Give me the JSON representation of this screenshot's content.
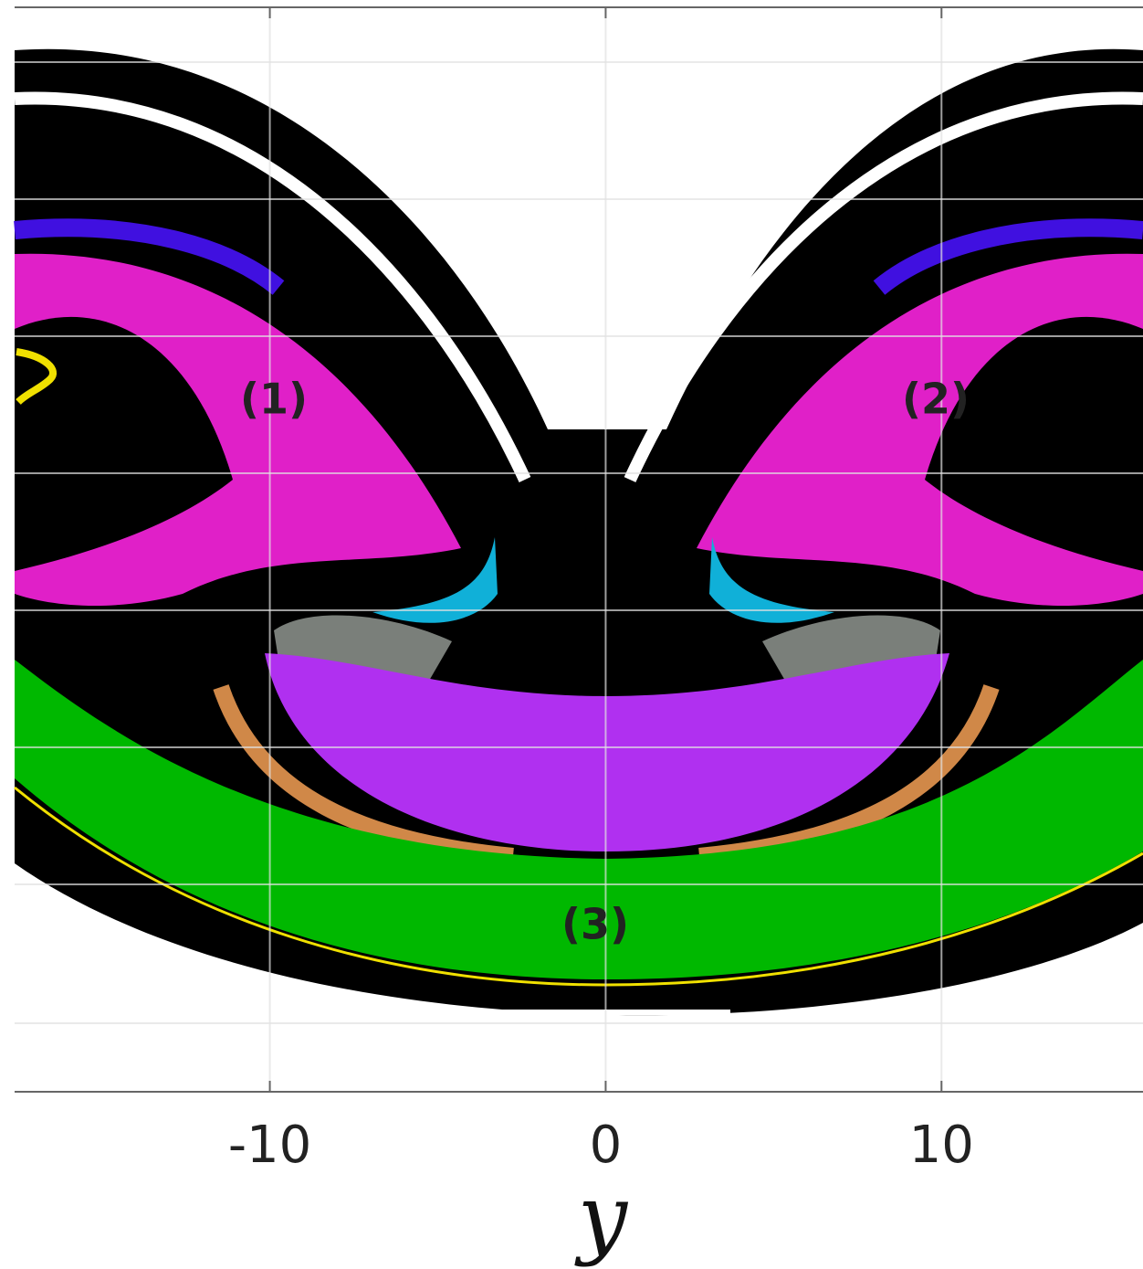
{
  "chart_data": {
    "type": "image",
    "xlabel": "y",
    "xlim": [
      -17.6,
      16
    ],
    "xticks": [
      -10,
      0,
      10
    ],
    "grid": true,
    "annotations": [
      "(1)",
      "(2)",
      "(3)"
    ]
  }
}
